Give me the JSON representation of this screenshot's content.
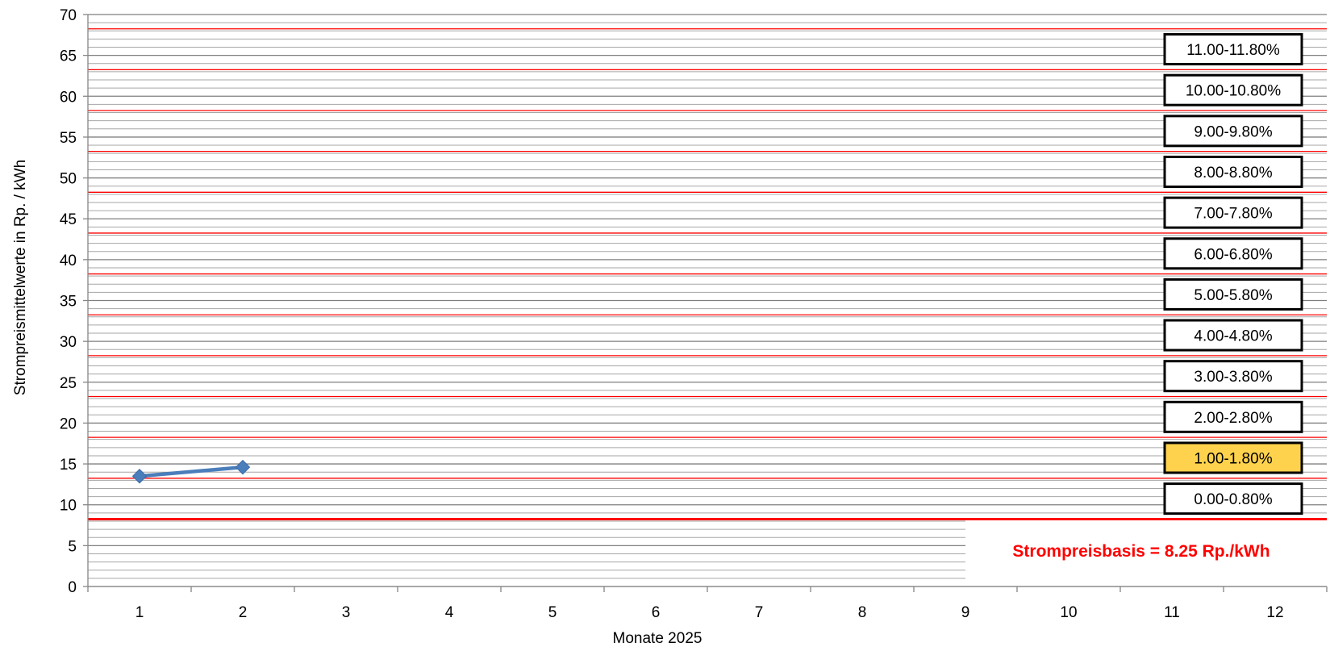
{
  "chart_data": {
    "type": "line",
    "xlabel": "Monate 2025",
    "ylabel": "Strompreismittelwerte in Rp. / kWh",
    "x_categories": [
      "1",
      "2",
      "3",
      "4",
      "5",
      "6",
      "7",
      "8",
      "9",
      "10",
      "11",
      "12"
    ],
    "ylim": [
      0,
      70
    ],
    "y_ticks": [
      0,
      5,
      10,
      15,
      20,
      25,
      30,
      35,
      40,
      45,
      50,
      55,
      60,
      65,
      70
    ],
    "minor_grid_step": 1,
    "series": [
      {
        "values": [
          13.5,
          14.6
        ],
        "color": "#4a7ebb",
        "marker": "diamond"
      }
    ],
    "threshold_lines": [
      8.25,
      13.25,
      18.25,
      23.25,
      28.25,
      33.25,
      38.25,
      43.25,
      48.25,
      53.25,
      58.25,
      63.25,
      68.25
    ],
    "bands": [
      {
        "label": "0.00-0.80%",
        "highlight": false
      },
      {
        "label": "1.00-1.80%",
        "highlight": true
      },
      {
        "label": "2.00-2.80%",
        "highlight": false
      },
      {
        "label": "3.00-3.80%",
        "highlight": false
      },
      {
        "label": "4.00-4.80%",
        "highlight": false
      },
      {
        "label": "5.00-5.80%",
        "highlight": false
      },
      {
        "label": "6.00-6.80%",
        "highlight": false
      },
      {
        "label": "7.00-7.80%",
        "highlight": false
      },
      {
        "label": "8.00-8.80%",
        "highlight": false
      },
      {
        "label": "9.00-9.80%",
        "highlight": false
      },
      {
        "label": "10.00-10.80%",
        "highlight": false
      },
      {
        "label": "11.00-11.80%",
        "highlight": false
      }
    ],
    "annotation": "Strompreisbasis = 8.25 Rp./kWh",
    "colors": {
      "threshold": "#ff0000",
      "highlight_fill": "#ffd24d",
      "annotation": "#ff0000",
      "grid": "#a6a6a6",
      "grid_major": "#7f7f7f"
    }
  }
}
